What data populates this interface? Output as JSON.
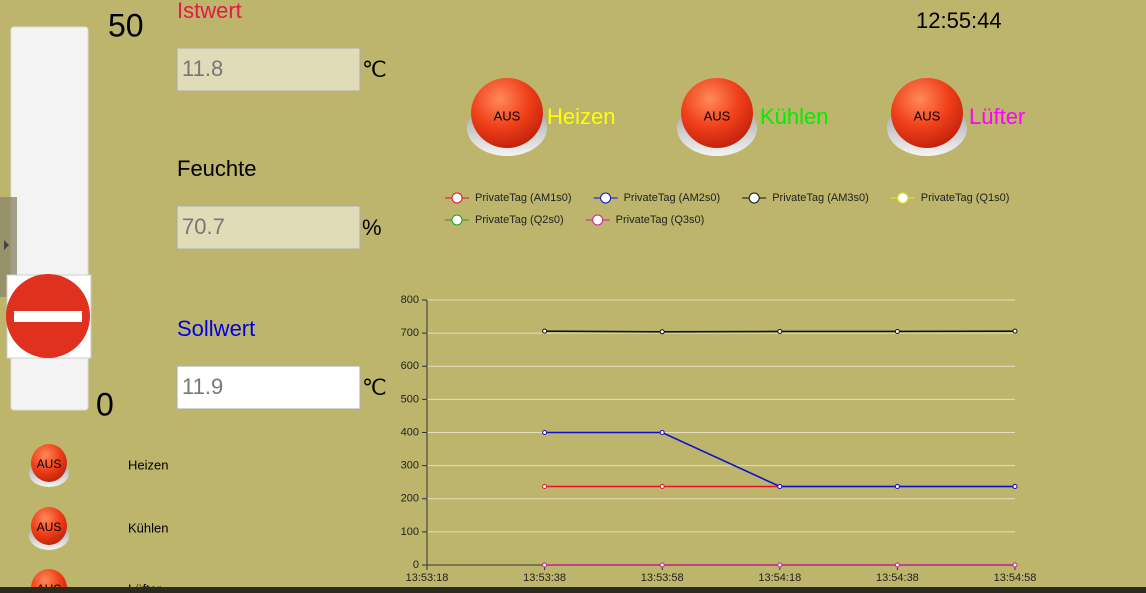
{
  "slider": {
    "max_label": "50",
    "min_label": "0"
  },
  "clock": "12:55:44",
  "fields": [
    {
      "label": "Istwert",
      "value": "11.8",
      "unit": "℃"
    },
    {
      "label": "Feuchte",
      "value": "70.7",
      "unit": "%"
    },
    {
      "label": "Sollwert",
      "value": "11.9",
      "unit": "℃"
    }
  ],
  "big_buttons": [
    {
      "label": "AUS",
      "name": "Heizen"
    },
    {
      "label": "AUS",
      "name": "Kühlen"
    },
    {
      "label": "AUS",
      "name": "Lüfter"
    }
  ],
  "small_buttons": [
    {
      "label": "AUS",
      "name": "Heizen"
    },
    {
      "label": "AUS",
      "name": "Kühlen"
    },
    {
      "label": "AUS",
      "name": "Lüfter"
    }
  ],
  "chart_data": {
    "type": "line",
    "x": [
      "13:53:38",
      "13:53:58",
      "13:54:18",
      "13:54:38",
      "13:54:58"
    ],
    "xlim": [
      "13:53:18",
      "13:54:58"
    ],
    "xticks": [
      "13:53:18",
      "13:53:38",
      "13:53:58",
      "13:54:18",
      "13:54:38",
      "13:54:58"
    ],
    "ylim": [
      0,
      800
    ],
    "yticks": [
      0,
      100,
      200,
      300,
      400,
      500,
      600,
      700,
      800
    ],
    "grid": true,
    "series": [
      {
        "name": "PrivateTag (AM1s0)",
        "color": "#e8102a",
        "values": [
          237,
          237,
          237,
          237,
          237
        ]
      },
      {
        "name": "PrivateTag (AM2s0)",
        "color": "#1010c8",
        "values": [
          400,
          400,
          237,
          237,
          237
        ]
      },
      {
        "name": "PrivateTag (AM3s0)",
        "color": "#111111",
        "values": [
          706,
          704,
          705,
          705,
          706
        ]
      },
      {
        "name": "PrivateTag (Q1s0)",
        "color": "#e8e820",
        "values": [
          0,
          0,
          0,
          0,
          0
        ]
      },
      {
        "name": "PrivateTag (Q2s0)",
        "color": "#20a020",
        "values": [
          0,
          0,
          0,
          0,
          0
        ]
      },
      {
        "name": "PrivateTag (Q3s0)",
        "color": "#d020a0",
        "values": [
          0,
          0,
          0,
          0,
          0
        ]
      }
    ]
  }
}
